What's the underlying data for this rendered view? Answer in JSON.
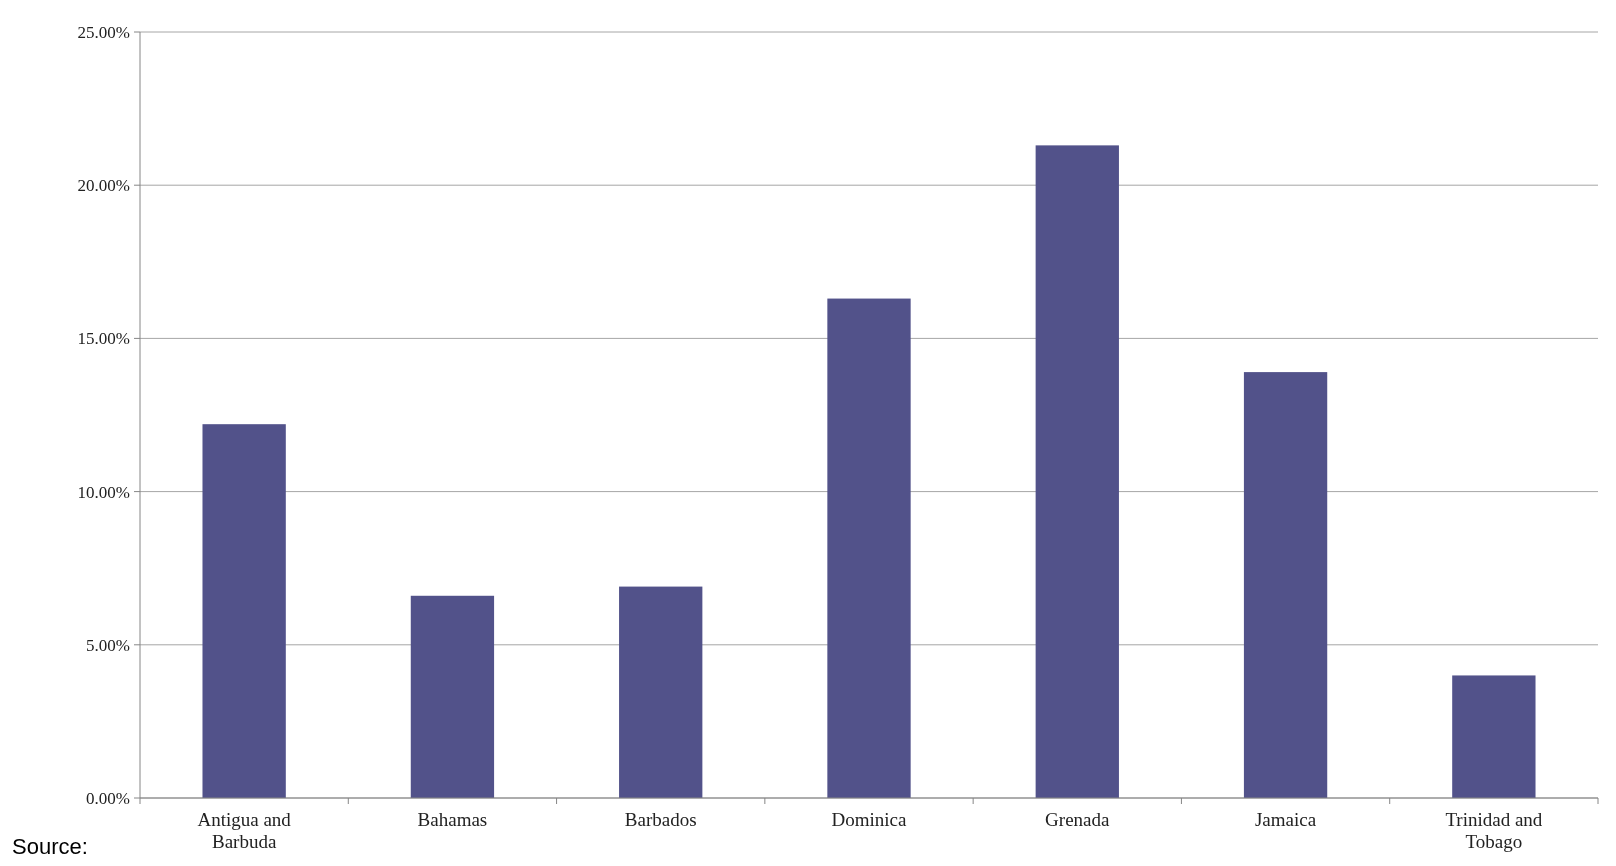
{
  "chart_data": {
    "type": "bar",
    "categories": [
      "Antigua and Barbuda",
      "Bahamas",
      "Barbados",
      "Dominica",
      "Grenada",
      "Jamaica",
      "Trinidad and Tobago"
    ],
    "values": [
      12.2,
      6.6,
      6.9,
      16.3,
      21.3,
      13.9,
      4.0
    ],
    "color": "#52528a",
    "ylim": [
      0,
      25
    ],
    "yticks": [
      {
        "value": 0,
        "label": "0.00%"
      },
      {
        "value": 5,
        "label": "5.00%"
      },
      {
        "value": 10,
        "label": "10.00%"
      },
      {
        "value": 15,
        "label": "15.00%"
      },
      {
        "value": 20,
        "label": "20.00%"
      },
      {
        "value": 25,
        "label": "25.00%"
      }
    ],
    "grid": "y",
    "annotations": [
      "Source:"
    ]
  }
}
